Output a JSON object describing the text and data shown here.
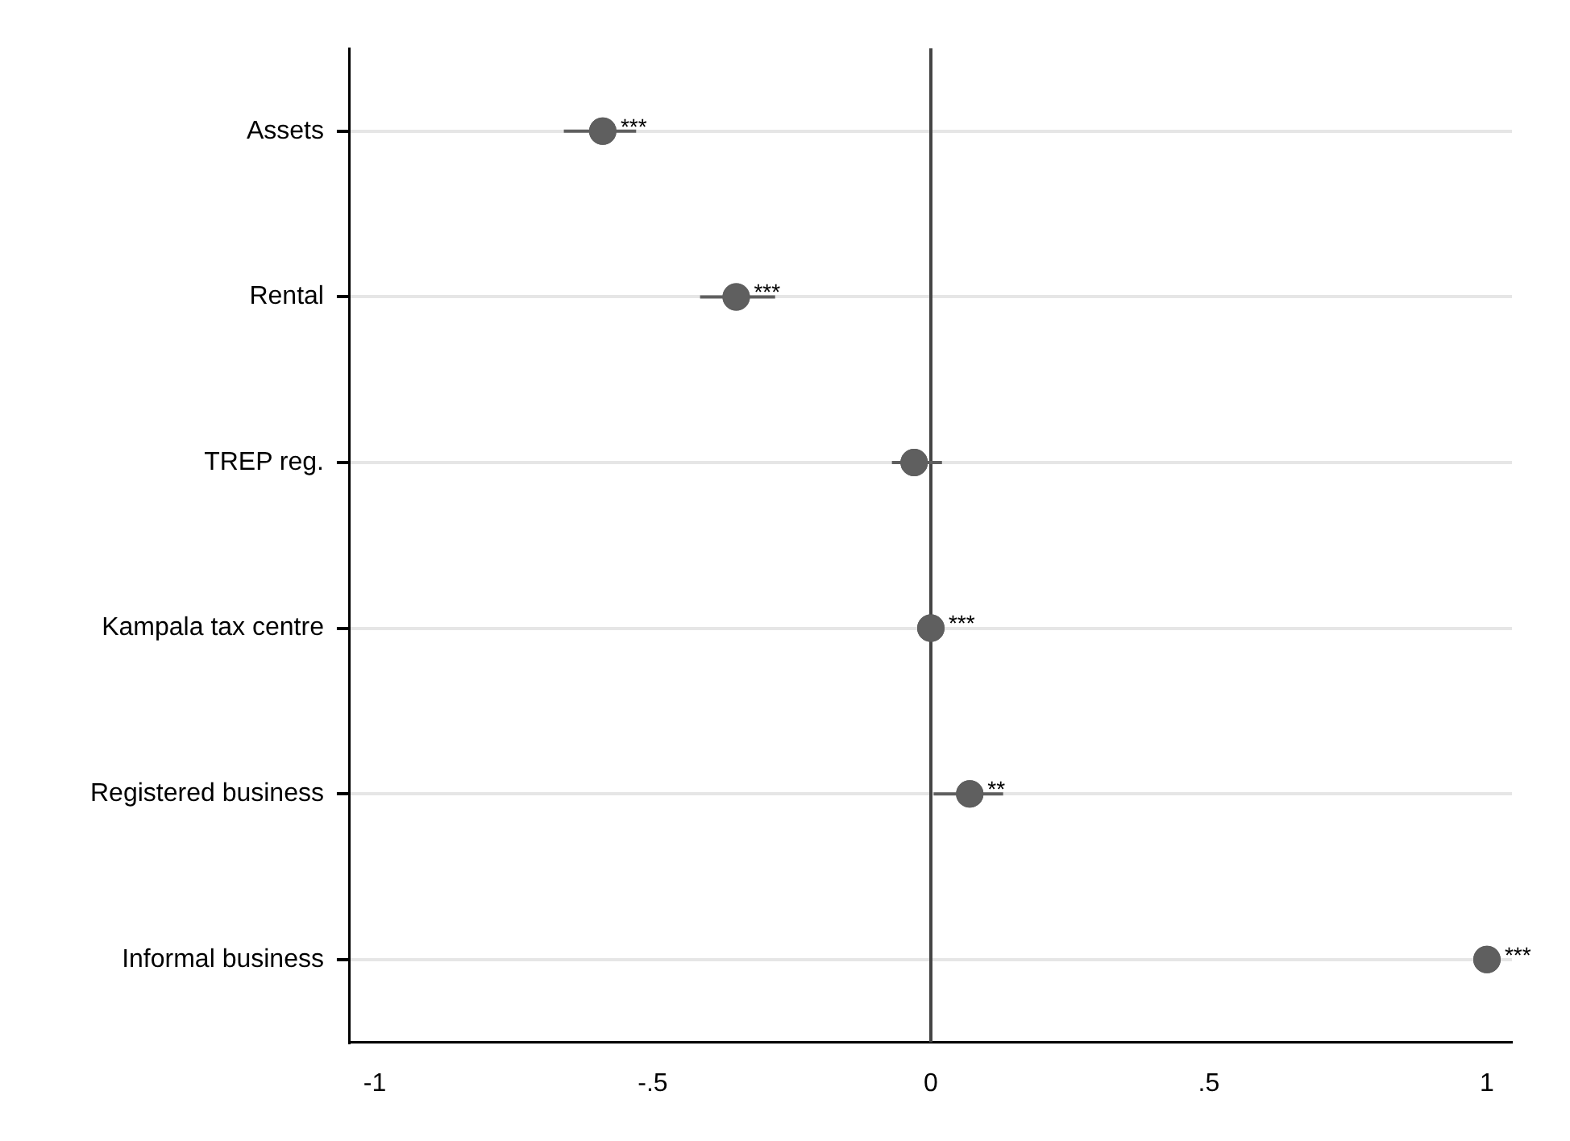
{
  "chart_data": {
    "type": "scatter",
    "orientation": "horizontal",
    "categories": [
      "Assets",
      "Rental",
      "TREP reg.",
      "Kampala tax centre",
      "Registered business",
      "Informal business"
    ],
    "values": [
      -0.59,
      -0.35,
      -0.03,
      0.0,
      0.07,
      1.0
    ],
    "errors": [
      [
        -0.66,
        -0.53
      ],
      [
        -0.415,
        -0.28
      ],
      [
        -0.07,
        0.02
      ],
      null,
      [
        0.005,
        0.13
      ],
      null
    ],
    "value_labels": [
      "***",
      "***",
      null,
      "***",
      "**",
      "***"
    ],
    "color": "#5f5f5f",
    "marker": "circle",
    "grid": "y",
    "legend": false,
    "xlim": [
      -1.045,
      1.045
    ],
    "xticks": [
      {
        "value": -1,
        "label": "-1"
      },
      {
        "value": -0.5,
        "label": "-.5"
      },
      {
        "value": 0,
        "label": "0"
      },
      {
        "value": 0.5,
        "label": ".5"
      },
      {
        "value": 1,
        "label": "1"
      }
    ],
    "ref_lines": [
      {
        "axis": "x",
        "value": 0,
        "color": "#444444"
      }
    ]
  }
}
